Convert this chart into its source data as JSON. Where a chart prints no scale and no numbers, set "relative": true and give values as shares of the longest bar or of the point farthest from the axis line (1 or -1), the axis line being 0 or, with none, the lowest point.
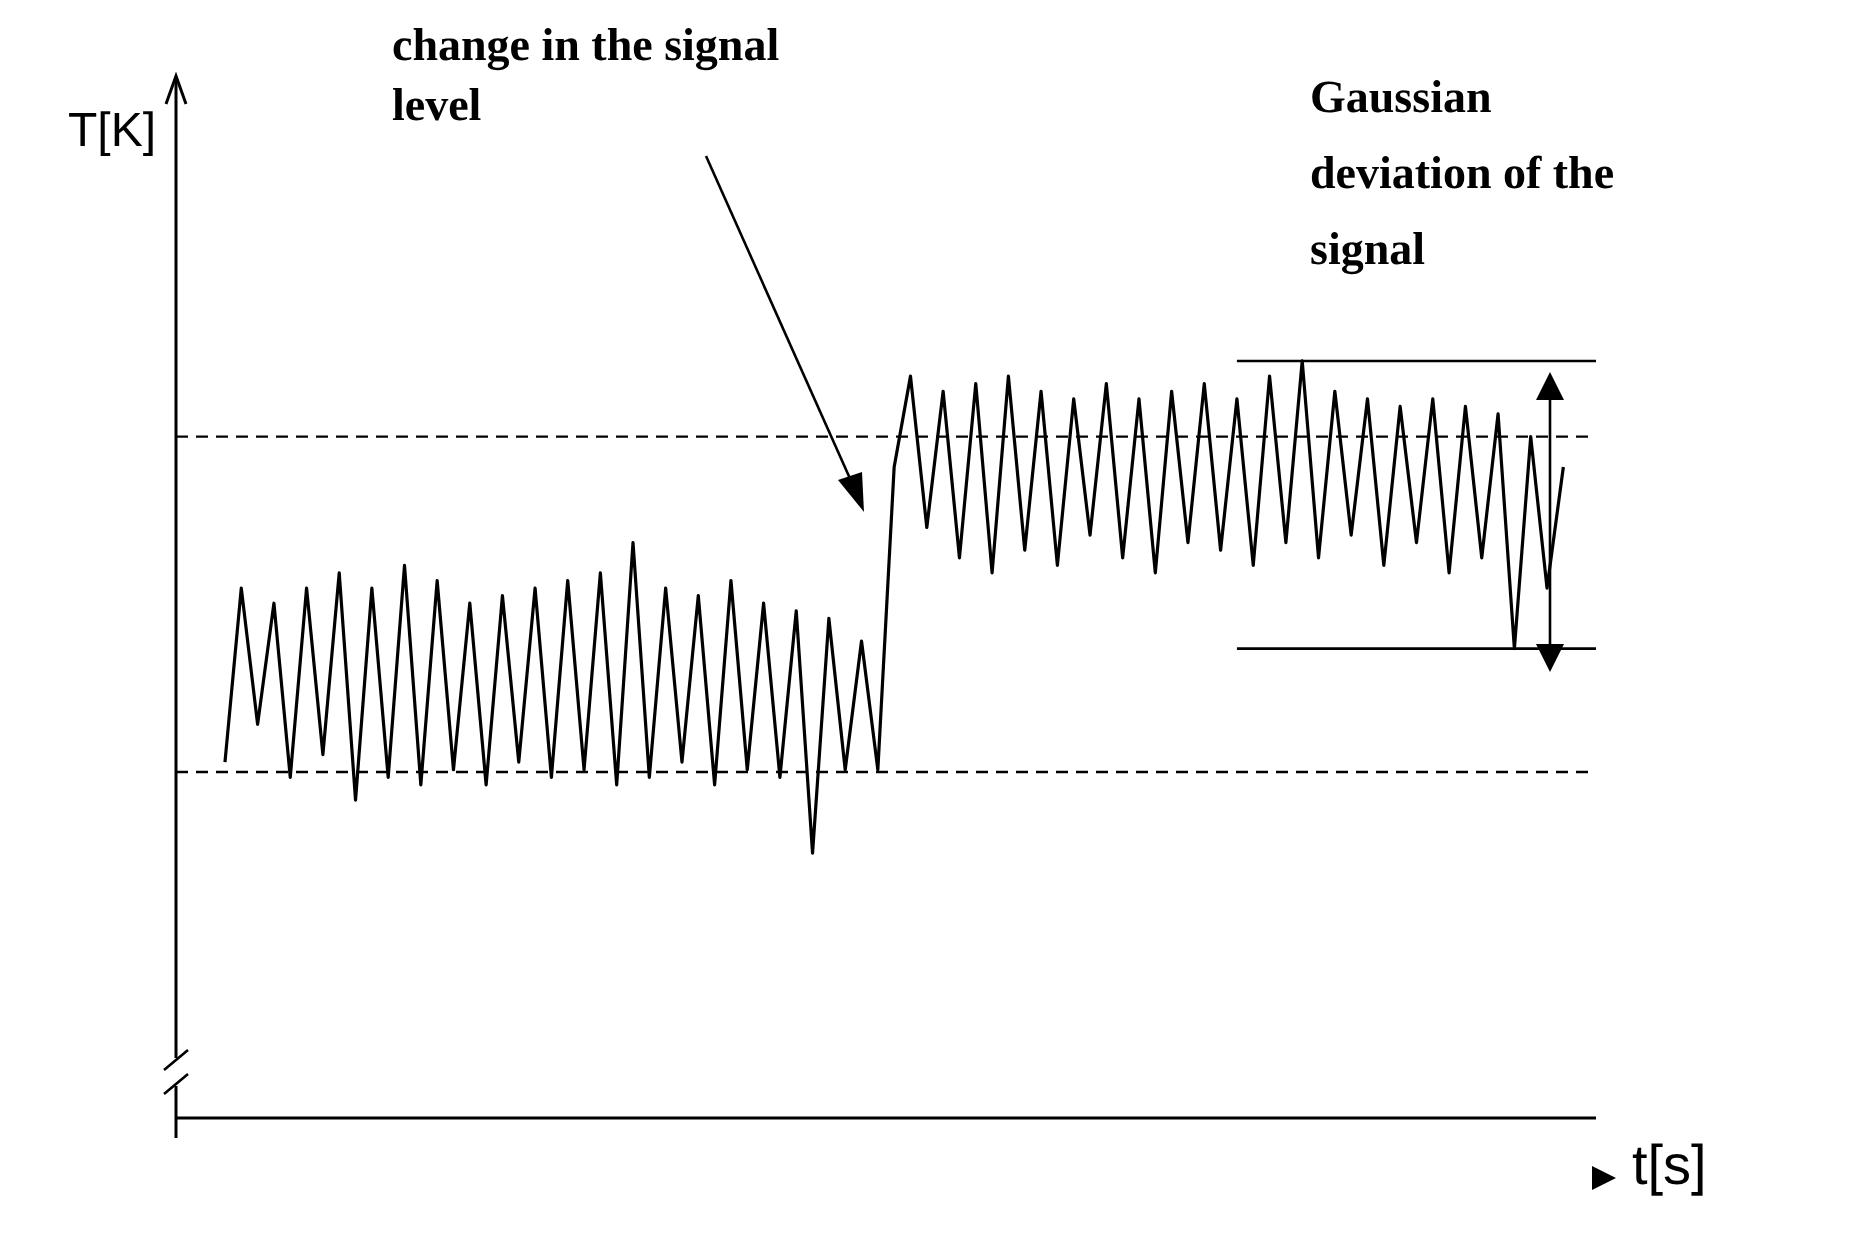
{
  "chart_data": {
    "type": "line",
    "relative": true,
    "xlabel": "t[s]",
    "ylabel": "T[K]",
    "annotations": [
      "change in the signal level",
      "Gaussian deviation of the signal"
    ],
    "categories": [
      null,
      null,
      null,
      null,
      null,
      null,
      null,
      null,
      null,
      null,
      null,
      null,
      null,
      null,
      null,
      null,
      null,
      null,
      null,
      null,
      null,
      null,
      null,
      null,
      null,
      null,
      null,
      null,
      null,
      null,
      null,
      null,
      null,
      null,
      null,
      null,
      null,
      null,
      null,
      null,
      null,
      null,
      null,
      null,
      null,
      null,
      null,
      null,
      null,
      null,
      null,
      null,
      null,
      null,
      null,
      null,
      null,
      null,
      null,
      null,
      null,
      null,
      null,
      null,
      null,
      null,
      null,
      null,
      null,
      null,
      null,
      null,
      null,
      null,
      null,
      null,
      null,
      null,
      null,
      null,
      null,
      null,
      null,
      null,
      null,
      null,
      null,
      null
    ],
    "series": [
      {
        "color": "#000000",
        "values": [
          null,
          null,
          null,
          0.47,
          0.7,
          0.52,
          0.68,
          0.45,
          0.7,
          0.48,
          0.72,
          0.42,
          0.7,
          0.45,
          0.73,
          0.44,
          0.71,
          0.46,
          0.68,
          0.44,
          0.69,
          0.47,
          0.7,
          0.45,
          0.71,
          0.46,
          0.72,
          0.44,
          0.76,
          0.45,
          0.7,
          0.47,
          0.69,
          0.44,
          0.71,
          0.46,
          0.68,
          0.45,
          0.67,
          0.35,
          0.66,
          0.46,
          0.63,
          0.46,
          0.86,
          0.98,
          0.78,
          0.96,
          0.74,
          0.97,
          0.72,
          0.98,
          0.75,
          0.96,
          0.73,
          0.95,
          0.77,
          0.97,
          0.74,
          0.95,
          0.72,
          0.96,
          0.76,
          0.97,
          0.75,
          0.95,
          0.73,
          0.98,
          0.76,
          1.0,
          0.74,
          0.96,
          0.77,
          0.95,
          0.73,
          0.94,
          0.76,
          0.95,
          0.72,
          0.94,
          0.74,
          0.93,
          0.62,
          0.9,
          0.7,
          0.86,
          null,
          null
        ]
      }
    ],
    "ref_lines": [
      {
        "axis": "y",
        "value": 0.9,
        "line_style": "dashed",
        "color": "#000000"
      },
      {
        "axis": "y",
        "value": 0.457,
        "line_style": "dashed",
        "color": "#000000"
      },
      {
        "axis": "y",
        "value": 1.0,
        "line_style": "solid",
        "color": "#000000"
      },
      {
        "axis": "y",
        "value": 0.62,
        "line_style": "solid",
        "color": "#000000"
      }
    ],
    "marker": "none",
    "line_style": "solid",
    "grid": false,
    "legend": false
  }
}
